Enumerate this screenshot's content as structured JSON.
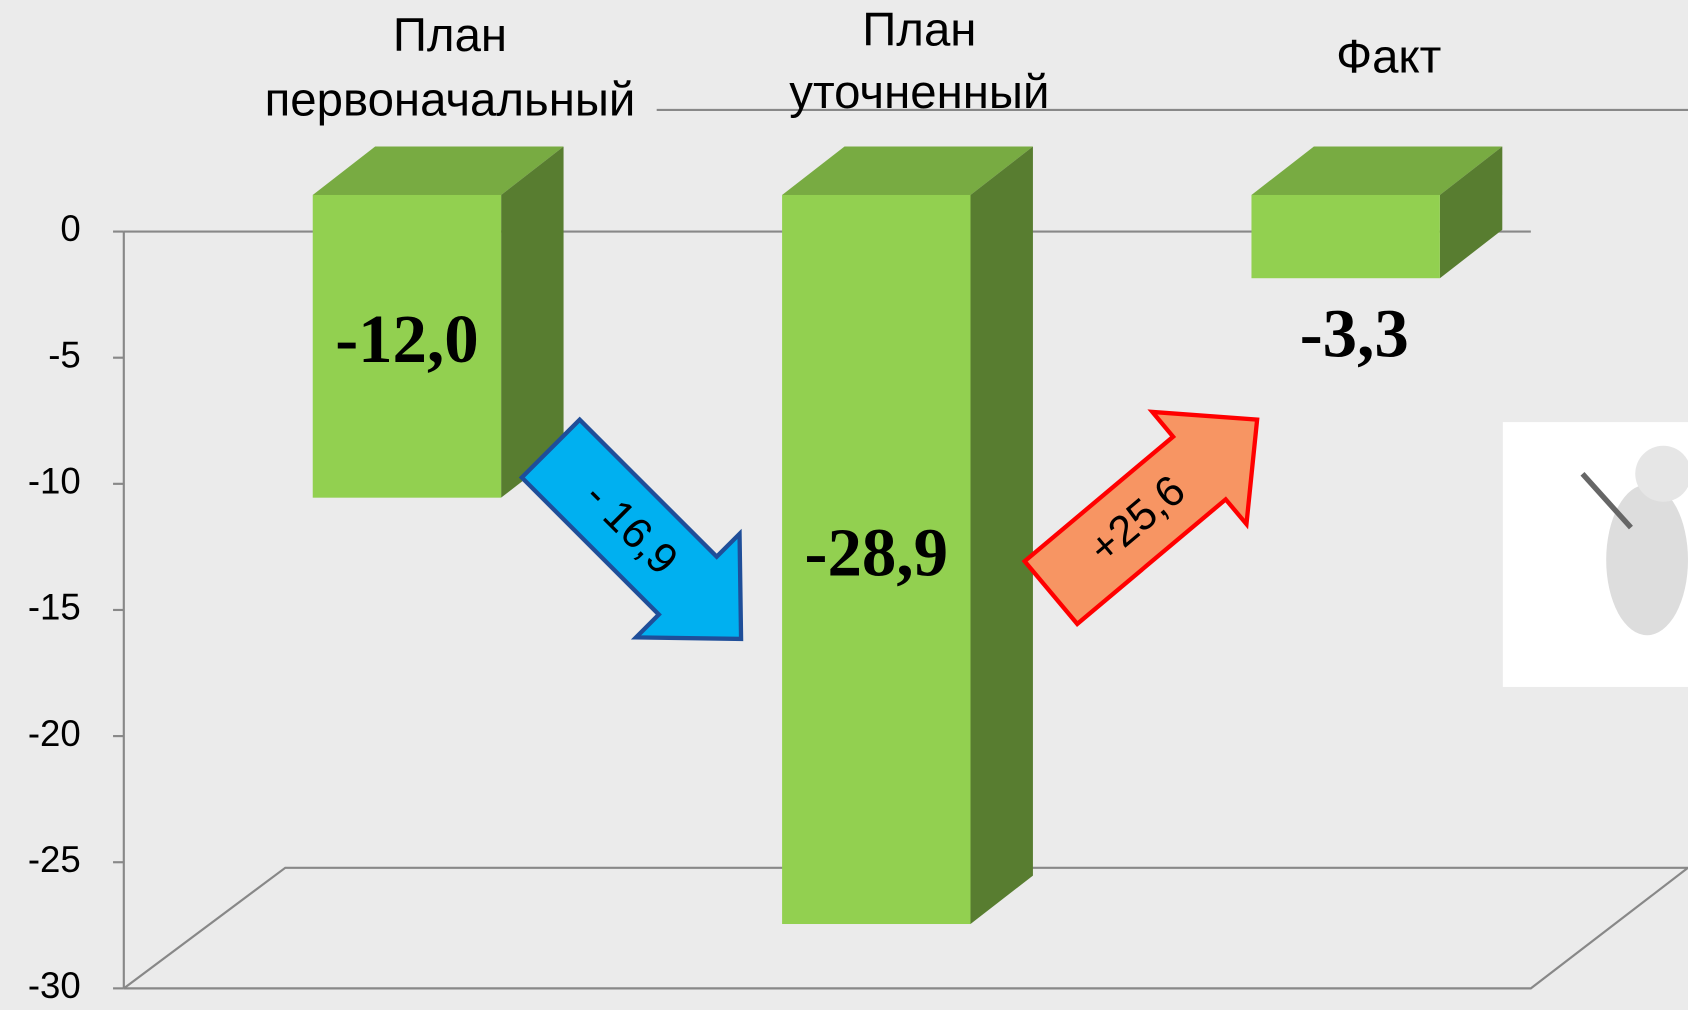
{
  "chart_data": {
    "type": "bar3d",
    "categories": [
      "План первоначальный",
      "План уточненный",
      "Факт"
    ],
    "values": [
      -12.0,
      -28.9,
      -3.3
    ],
    "value_labels": [
      "-12,0",
      "-28,9",
      "-3,3"
    ],
    "color": "#92d050",
    "ylim": [
      -30,
      0
    ],
    "yticks": [
      0,
      -5,
      -10,
      -15,
      -20,
      -25,
      -30
    ],
    "grid": false,
    "annotations": [
      {
        "text": "- 16,9",
        "color": "#00b0f0"
      },
      {
        "text": "+25,6",
        "color": "#f79563"
      }
    ]
  }
}
